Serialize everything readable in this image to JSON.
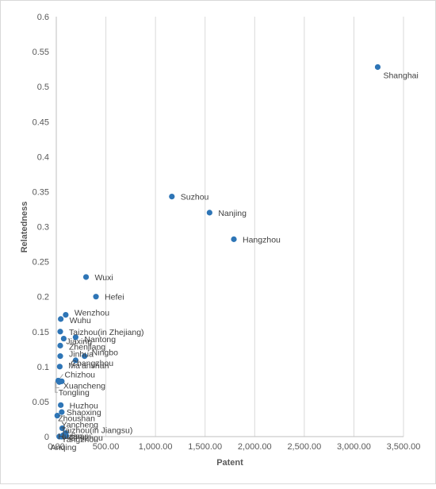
{
  "chart_data": {
    "type": "scatter",
    "title": "",
    "xlabel": "Patent",
    "ylabel": "Relatedness",
    "xlim": [
      0,
      3500
    ],
    "ylim": [
      0,
      0.6
    ],
    "x_ticks": [
      "0.00",
      "500.00",
      "1,000.00",
      "1,500.00",
      "2,000.00",
      "2,500.00",
      "3,000.00",
      "3,500.00"
    ],
    "y_ticks": [
      "0",
      "0.05",
      "0.1",
      "0.15",
      "0.2",
      "0.25",
      "0.3",
      "0.35",
      "0.4",
      "0.45",
      "0.5",
      "0.55",
      "0.6"
    ],
    "grid": "vertical",
    "marker_color": "#2e75b6",
    "points": [
      {
        "label": "Shanghai",
        "x": 3240,
        "y": 0.528
      },
      {
        "label": "Suzhou",
        "x": 1165,
        "y": 0.343
      },
      {
        "label": "Nanjing",
        "x": 1545,
        "y": 0.32
      },
      {
        "label": "Hangzhou",
        "x": 1790,
        "y": 0.282
      },
      {
        "label": "Wuxi",
        "x": 300,
        "y": 0.228
      },
      {
        "label": "Hefei",
        "x": 400,
        "y": 0.2
      },
      {
        "label": "Wenzhou",
        "x": 95,
        "y": 0.174
      },
      {
        "label": "Wuhu",
        "x": 45,
        "y": 0.168
      },
      {
        "label": "Taizhou(in Zhejiang)",
        "x": 40,
        "y": 0.15
      },
      {
        "label": "Nantong",
        "x": 195,
        "y": 0.142
      },
      {
        "label": "Jiaxing",
        "x": 75,
        "y": 0.14
      },
      {
        "label": "Zhenjiang",
        "x": 40,
        "y": 0.13
      },
      {
        "label": "Ningbo",
        "x": 285,
        "y": 0.115
      },
      {
        "label": "Jinhua",
        "x": 40,
        "y": 0.115
      },
      {
        "label": "Changzhou",
        "x": 195,
        "y": 0.109
      },
      {
        "label": "Ma'anshan",
        "x": 35,
        "y": 0.1
      },
      {
        "label": "Chizhou",
        "x": 20,
        "y": 0.08
      },
      {
        "label": "Xuancheng",
        "x": 55,
        "y": 0.079
      },
      {
        "label": "Tongling",
        "x": 30,
        "y": 0.078
      },
      {
        "label": "Huzhou",
        "x": 45,
        "y": 0.045
      },
      {
        "label": "Shaoxing",
        "x": 55,
        "y": 0.035
      },
      {
        "label": "Zhoushan",
        "x": 10,
        "y": 0.03
      },
      {
        "label": "Yancheng",
        "x": 60,
        "y": 0.012
      },
      {
        "label": "Taizhou(in Jiangsu)",
        "x": 95,
        "y": 0.005
      },
      {
        "label": "Chuzhou",
        "x": 70,
        "y": 0.002
      },
      {
        "label": "Yangzhou",
        "x": 100,
        "y": 0.001
      },
      {
        "label": "Anqing",
        "x": 30,
        "y": 0.0
      },
      {
        "label": "Huainan",
        "x": 50,
        "y": 0.0
      },
      {
        "label": "Lu'an",
        "x": 60,
        "y": 0.0
      }
    ]
  }
}
